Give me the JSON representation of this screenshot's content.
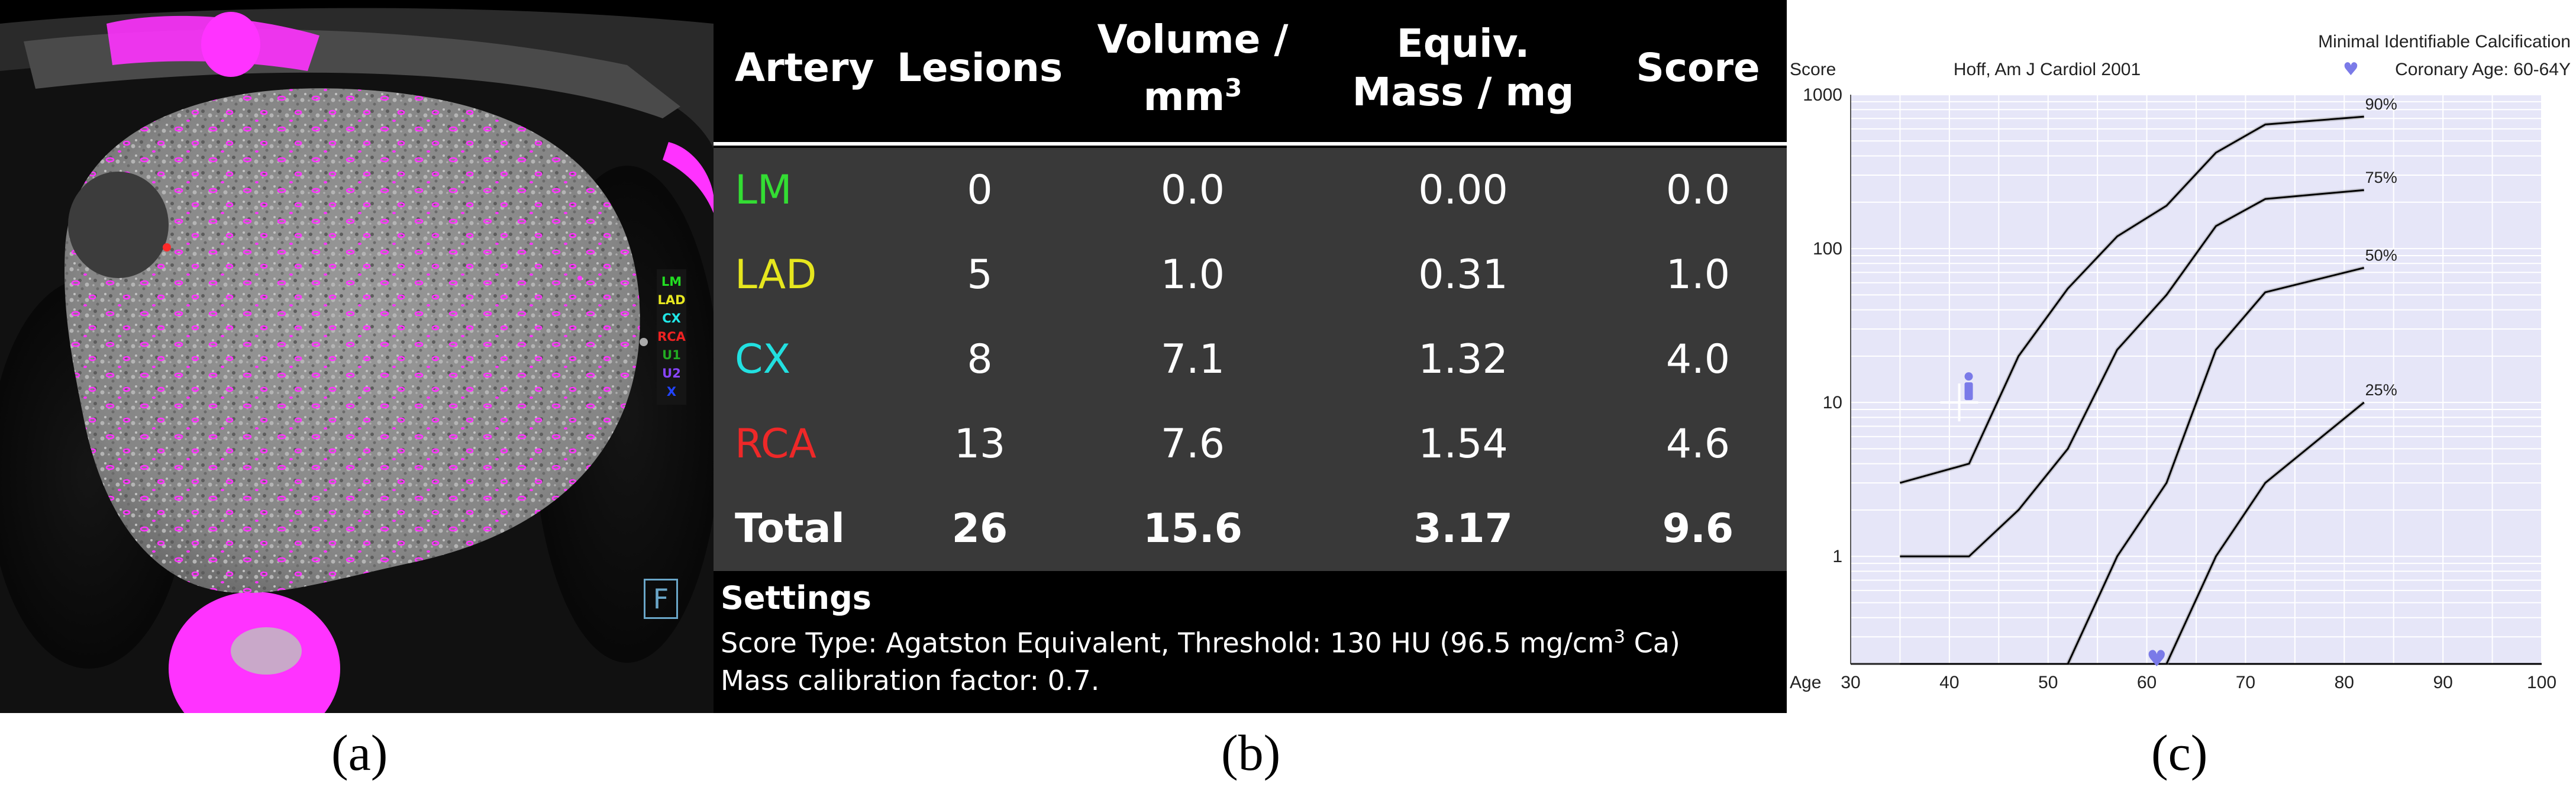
{
  "panel_a": {
    "caption": "(a)",
    "legend": [
      {
        "label": "LM",
        "color": "#22dd22"
      },
      {
        "label": "LAD",
        "color": "#e8e820"
      },
      {
        "label": "CX",
        "color": "#20e8e8"
      },
      {
        "label": "RCA",
        "color": "#ee2222"
      },
      {
        "label": "U1",
        "color": "#22aa22"
      },
      {
        "label": "U2",
        "color": "#8844ff"
      },
      {
        "label": "X",
        "color": "#2244ff"
      }
    ],
    "colors": {
      "highlight": "#ff33ff",
      "tissue": "#8a8a8a"
    }
  },
  "panel_b": {
    "caption": "(b)",
    "headers": {
      "artery": "Artery",
      "lesions": "Lesions",
      "volume_l1": "Volume /",
      "volume_l2": "mm",
      "volume_sup": "3",
      "mass_l1": "Equiv.",
      "mass_l2": "Mass / mg",
      "score": "Score"
    },
    "rows": [
      {
        "artery": "LM",
        "color": "#33dd33",
        "lesions": "0",
        "volume": "0.0",
        "mass": "0.00",
        "score": "0.0"
      },
      {
        "artery": "LAD",
        "color": "#e6e61e",
        "lesions": "5",
        "volume": "1.0",
        "mass": "0.31",
        "score": "1.0"
      },
      {
        "artery": "CX",
        "color": "#22e0e0",
        "lesions": "8",
        "volume": "7.1",
        "mass": "1.32",
        "score": "4.0"
      },
      {
        "artery": "RCA",
        "color": "#ee2828",
        "lesions": "13",
        "volume": "7.6",
        "mass": "1.54",
        "score": "4.6"
      },
      {
        "artery": "Total",
        "color": "#ffffff",
        "lesions": "26",
        "volume": "15.6",
        "mass": "3.17",
        "score": "9.6"
      }
    ],
    "settings": {
      "icon": "F",
      "title": "Settings",
      "line1_prefix": "Score Type: Agatston Equivalent, Threshold: 130 HU (96.5 mg/cm",
      "line1_sup": "3",
      "line1_suffix": " Ca)",
      "line2": "Mass calibration factor: 0.7."
    }
  },
  "panel_c": {
    "caption": "(c)",
    "colors": {
      "plot_bg": "#e6e6f8",
      "grid": "#ffffff",
      "curve": "#000000",
      "marker": "#7a7ae8"
    }
  },
  "chart_data": {
    "type": "line",
    "title": "Hoff, Am J Cardiol 2001",
    "legend_title": "Minimal Identifiable Calcification",
    "legend_marker_label": "Coronary Age: 60-64Y",
    "xlabel": "Age",
    "ylabel": "Score",
    "x_ticks": [
      30,
      40,
      50,
      60,
      70,
      80,
      90,
      100
    ],
    "y_ticks": [
      1,
      10,
      100,
      1000
    ],
    "xlim": [
      30,
      100
    ],
    "ylim": [
      0.2,
      1000
    ],
    "yscale": "log",
    "series": [
      {
        "name": "90%",
        "points": [
          [
            35,
            3
          ],
          [
            42,
            4
          ],
          [
            47,
            20
          ],
          [
            52,
            55
          ],
          [
            57,
            120
          ],
          [
            62,
            190
          ],
          [
            67,
            420
          ],
          [
            72,
            640
          ],
          [
            82,
            720
          ]
        ]
      },
      {
        "name": "75%",
        "points": [
          [
            35,
            1
          ],
          [
            42,
            1
          ],
          [
            47,
            2
          ],
          [
            52,
            5
          ],
          [
            57,
            22
          ],
          [
            62,
            50
          ],
          [
            67,
            140
          ],
          [
            72,
            210
          ],
          [
            82,
            240
          ]
        ]
      },
      {
        "name": "50%",
        "points": [
          [
            52,
            0.2
          ],
          [
            57,
            1
          ],
          [
            62,
            3
          ],
          [
            67,
            22
          ],
          [
            72,
            52
          ],
          [
            82,
            75
          ]
        ]
      },
      {
        "name": "25%",
        "points": [
          [
            62,
            0.2
          ],
          [
            67,
            1
          ],
          [
            72,
            3
          ],
          [
            82,
            10
          ]
        ]
      }
    ],
    "floor_line": {
      "x": [
        35,
        100
      ],
      "y": 0.2
    },
    "person_marker": {
      "x": 41,
      "y": 10
    },
    "heart_marker": {
      "x": 61,
      "y": 0.2
    }
  }
}
